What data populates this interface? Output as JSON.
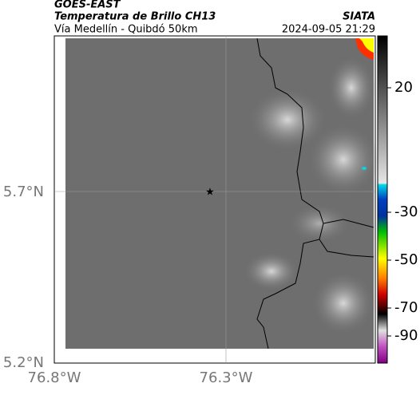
{
  "header": {
    "satellite": "GOES-EAST",
    "product": "Temperatura de Brillo CH13",
    "region": "Vía Medellín - Quibdó 50km",
    "source": "SIATA",
    "datetime": "2024-09-05 21:29"
  },
  "map": {
    "lat_labels": [
      "5.7°N",
      "5.2°N"
    ],
    "lon_labels": [
      "76.8°W",
      "76.3°W"
    ]
  },
  "colorbar": {
    "ticks": [
      20,
      -30,
      -50,
      -70,
      -90
    ]
  }
}
